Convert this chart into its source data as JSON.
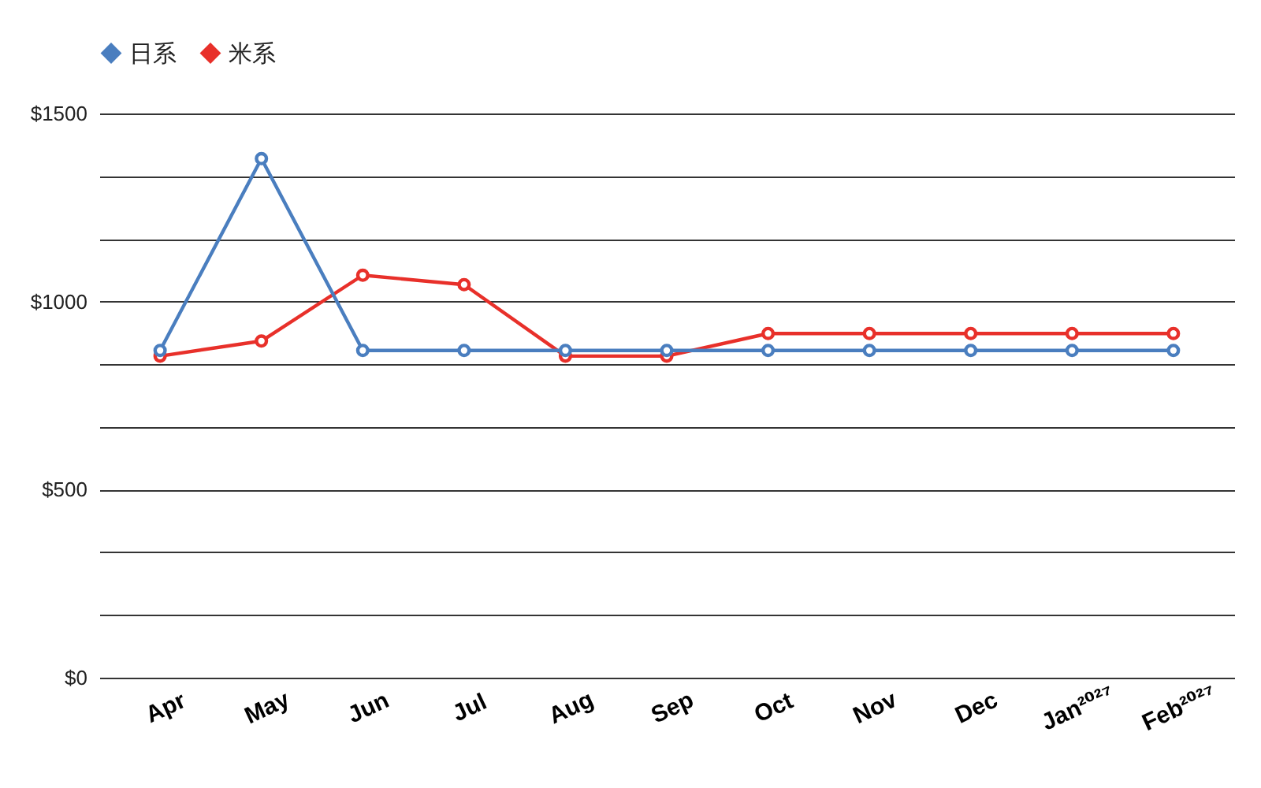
{
  "chart_data": {
    "type": "line",
    "categories": [
      "Apr",
      "May",
      "Jun",
      "Jul",
      "Aug",
      "Sep",
      "Oct",
      "Nov",
      "Dec",
      "Jan²⁰²⁷",
      "Feb²⁰²⁷"
    ],
    "series": [
      {
        "name": "日系",
        "color": "#4a7ebf",
        "values": [
          870,
          1380,
          870,
          870,
          870,
          870,
          870,
          870,
          870,
          870,
          870
        ]
      },
      {
        "name": "米系",
        "color": "#e8302a",
        "values": [
          855,
          895,
          1070,
          1045,
          855,
          855,
          915,
          915,
          915,
          915,
          915
        ]
      }
    ],
    "ylim": [
      0,
      1500
    ],
    "yticks": [
      {
        "value": 0,
        "label": "$0"
      },
      {
        "value": 166.67,
        "label": null
      },
      {
        "value": 333.33,
        "label": null
      },
      {
        "value": 500,
        "label": "$500"
      },
      {
        "value": 666.67,
        "label": null
      },
      {
        "value": 833.33,
        "label": null
      },
      {
        "value": 1000,
        "label": "$1000"
      },
      {
        "value": 1166.67,
        "label": null
      },
      {
        "value": 1333.33,
        "label": null
      },
      {
        "value": 1500,
        "label": "$1500"
      }
    ],
    "grid": "y",
    "legend": "top",
    "marker": "circle",
    "line_style": "solid"
  }
}
